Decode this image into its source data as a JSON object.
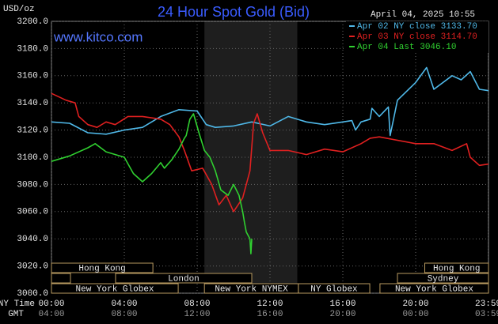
{
  "chart_data": {
    "type": "line",
    "title": "24 Hour Spot Gold (Bid)",
    "timestamp": "April 04, 2025 10:55",
    "source": "www.kitco.com",
    "y_unit": "USD/oz",
    "x_row_labels": [
      "NY Time",
      "GMT"
    ],
    "ylim": [
      3000,
      3200
    ],
    "yticks": [
      {
        "value": 3000,
        "label": "3000.0"
      },
      {
        "value": 3020,
        "label": "3020.0"
      },
      {
        "value": 3040,
        "label": "3040.0"
      },
      {
        "value": 3060,
        "label": "3060.0"
      },
      {
        "value": 3080,
        "label": "3080.0"
      },
      {
        "value": 3100,
        "label": "3100.0"
      },
      {
        "value": 3120,
        "label": "3120.0"
      },
      {
        "value": 3140,
        "label": "3140.0"
      },
      {
        "value": 3160,
        "label": "3160.0"
      },
      {
        "value": 3180,
        "label": "3180.0"
      },
      {
        "value": 3200,
        "label": "3200.0"
      }
    ],
    "xlim": [
      0,
      24
    ],
    "xticks": [
      {
        "value": 0,
        "label": "00:00"
      },
      {
        "value": 4,
        "label": "04:00"
      },
      {
        "value": 8,
        "label": "08:00"
      },
      {
        "value": 12,
        "label": "12:00"
      },
      {
        "value": 16,
        "label": "16:00"
      },
      {
        "value": 20,
        "label": "20:00"
      },
      {
        "value": 23.98,
        "label": "23:59"
      }
    ],
    "gmt_labels": [
      "04:00",
      "08:00",
      "12:00",
      "16:00",
      "20:00",
      "00:00",
      "03:59"
    ],
    "grid": true,
    "highlight": [
      8.4,
      13.5
    ],
    "series": [
      {
        "name": "Apr 02 NY close 3133.70",
        "color": "#4fb8e8",
        "x": [
          0,
          1,
          2,
          3,
          4,
          5,
          6,
          7,
          8,
          8.5,
          9,
          10,
          11,
          12,
          13,
          14,
          15,
          16,
          16.5,
          16.7,
          17,
          17.5,
          17.6,
          18,
          18.5,
          18.6,
          19,
          20,
          20.6,
          21,
          22,
          22.5,
          23,
          23.5,
          24
        ],
        "values": [
          3126,
          3125,
          3118,
          3117,
          3120,
          3122,
          3130,
          3135,
          3134,
          3124,
          3122,
          3123,
          3126,
          3123,
          3130,
          3126,
          3124,
          3126,
          3127,
          3120,
          3126,
          3128,
          3136,
          3130,
          3137,
          3116,
          3142,
          3155,
          3166,
          3150,
          3160,
          3157,
          3163,
          3150,
          3149
        ]
      },
      {
        "name": "Apr 03 NY close 3114.70",
        "color": "#e02020",
        "x": [
          0,
          0.8,
          1.3,
          1.5,
          2,
          2.5,
          3,
          3.5,
          4.2,
          5,
          6,
          6.5,
          7,
          7.3,
          7.7,
          8.3,
          8.8,
          9.2,
          9.6,
          10,
          10.5,
          10.9,
          11.1,
          11.3,
          11.6,
          12,
          13,
          14,
          15,
          16,
          17,
          17.5,
          18,
          20,
          21,
          22,
          22.8,
          23,
          23.5,
          24
        ],
        "values": [
          3147,
          3142,
          3140,
          3130,
          3124,
          3122,
          3126,
          3124,
          3130,
          3130,
          3128,
          3124,
          3115,
          3105,
          3090,
          3092,
          3080,
          3065,
          3072,
          3060,
          3070,
          3090,
          3125,
          3132,
          3118,
          3105,
          3105,
          3102,
          3106,
          3104,
          3110,
          3114,
          3115,
          3110,
          3110,
          3105,
          3110,
          3100,
          3094,
          3095
        ]
      },
      {
        "name": "Apr 04 Last 3046.10",
        "color": "#30d030",
        "x": [
          0,
          1,
          2,
          2.4,
          3,
          4,
          4.5,
          5,
          5.5,
          6,
          6.2,
          6.6,
          7,
          7.3,
          7.4,
          7.6,
          7.8,
          8.1,
          8.4,
          8.7,
          9,
          9.3,
          9.7,
          10,
          10.3,
          10.5,
          10.6,
          10.7,
          10.9,
          10.95,
          11
        ],
        "values": [
          3097,
          3101,
          3107,
          3110,
          3104,
          3100,
          3088,
          3082,
          3088,
          3096,
          3092,
          3098,
          3106,
          3114,
          3116,
          3128,
          3132,
          3118,
          3105,
          3100,
          3090,
          3076,
          3072,
          3080,
          3072,
          3060,
          3052,
          3045,
          3040,
          3029,
          3040
        ]
      }
    ],
    "sessions": [
      {
        "label": "Hong Kong",
        "start": 0,
        "end": 5.57,
        "row": 0
      },
      {
        "label": "London",
        "start": 3.52,
        "end": 11,
        "row": 1
      },
      {
        "label": "New York Globex",
        "start": 0,
        "end": 6.96,
        "row": 2
      },
      {
        "label": "New York NYMEX",
        "start": 8.4,
        "end": 13.56,
        "row": 2
      },
      {
        "label": "NY Globex",
        "start": 13.56,
        "end": 17.48,
        "row": 2
      },
      {
        "label": "Hong Kong",
        "start": 20.5,
        "end": 24,
        "row": 0
      },
      {
        "label": "Sydney",
        "start": 19.0,
        "end": 24,
        "row": 1
      },
      {
        "label": "New York Globex",
        "start": 18.04,
        "end": 24,
        "row": 2
      }
    ]
  }
}
